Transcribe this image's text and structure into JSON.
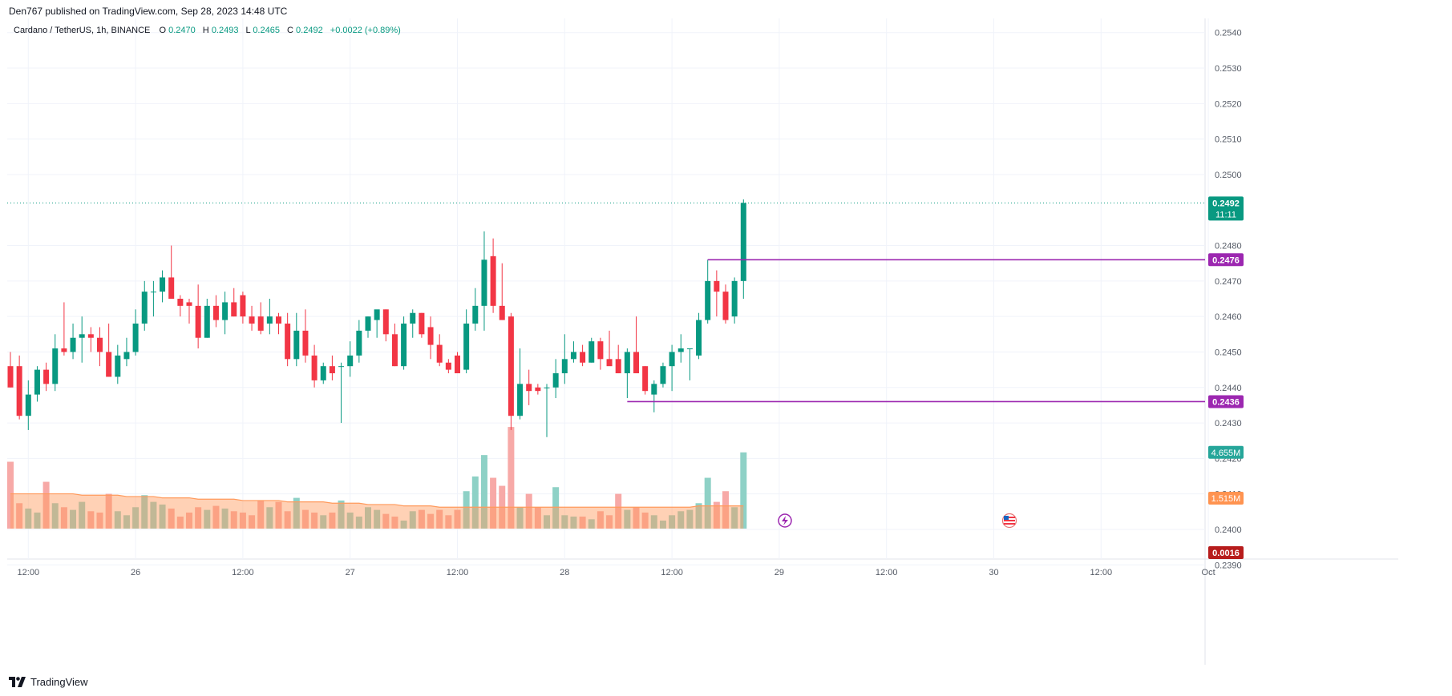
{
  "header": {
    "publisher": "Den767 published on TradingView.com, Sep 28, 2023 14:48 UTC",
    "symbol": "Cardano / TetherUS, 1h, BINANCE",
    "o_label": "O",
    "o_value": "0.2470",
    "h_label": "H",
    "h_value": "0.2493",
    "l_label": "L",
    "l_value": "0.2465",
    "c_label": "C",
    "c_value": "0.2492",
    "change": "+0.0022 (+0.89%)"
  },
  "colors": {
    "up": "#089981",
    "down": "#F23645",
    "up_volume": "#8ED1C6",
    "down_volume": "#F7A9A7",
    "ma_volume": "#FF9A5C",
    "level": "#9C27B0",
    "grid": "#F0F3FA",
    "text": "#131722",
    "axis_text": "#555B66"
  },
  "chart_data": {
    "type": "candlestick",
    "symbol": "Cardano / TetherUS",
    "interval": "1h",
    "exchange": "BINANCE",
    "y_axis": {
      "ylim": [
        0.2386,
        0.2544
      ],
      "ticks": [
        "0.2540",
        "0.2530",
        "0.2520",
        "0.2510",
        "0.2500",
        "0.2480",
        "0.2470",
        "0.2460",
        "0.2450",
        "0.2440",
        "0.2430",
        "0.2420",
        "0.2410",
        "0.2400",
        "0.2390"
      ]
    },
    "x_axis": {
      "tick_labels": [
        "12:00",
        "26",
        "12:00",
        "27",
        "12:00",
        "28",
        "12:00",
        "29",
        "12:00",
        "30",
        "12:00",
        "Oct"
      ],
      "tick_index": [
        2,
        14,
        26,
        38,
        50,
        62,
        74,
        86,
        98,
        110,
        122,
        134
      ]
    },
    "grid": true,
    "candles": [
      {
        "o": 0.2446,
        "h": 0.245,
        "l": 0.244,
        "c": 0.244
      },
      {
        "o": 0.2446,
        "h": 0.2449,
        "l": 0.2431,
        "c": 0.2432
      },
      {
        "o": 0.2432,
        "h": 0.2442,
        "l": 0.2428,
        "c": 0.2438
      },
      {
        "o": 0.2438,
        "h": 0.2446,
        "l": 0.2436,
        "c": 0.2445
      },
      {
        "o": 0.2445,
        "h": 0.2447,
        "l": 0.2439,
        "c": 0.2441
      },
      {
        "o": 0.2441,
        "h": 0.2455,
        "l": 0.2439,
        "c": 0.2451
      },
      {
        "o": 0.2451,
        "h": 0.2464,
        "l": 0.2449,
        "c": 0.245
      },
      {
        "o": 0.245,
        "h": 0.2458,
        "l": 0.2448,
        "c": 0.2454
      },
      {
        "o": 0.2454,
        "h": 0.246,
        "l": 0.2447,
        "c": 0.2455
      },
      {
        "o": 0.2455,
        "h": 0.2457,
        "l": 0.245,
        "c": 0.2454
      },
      {
        "o": 0.2454,
        "h": 0.2457,
        "l": 0.2446,
        "c": 0.245
      },
      {
        "o": 0.245,
        "h": 0.2458,
        "l": 0.2443,
        "c": 0.2443
      },
      {
        "o": 0.2443,
        "h": 0.2452,
        "l": 0.2441,
        "c": 0.2449
      },
      {
        "o": 0.2448,
        "h": 0.2454,
        "l": 0.2446,
        "c": 0.245
      },
      {
        "o": 0.245,
        "h": 0.2462,
        "l": 0.2449,
        "c": 0.2458
      },
      {
        "o": 0.2458,
        "h": 0.247,
        "l": 0.2456,
        "c": 0.2467
      },
      {
        "o": 0.2467,
        "h": 0.247,
        "l": 0.246,
        "c": 0.2467
      },
      {
        "o": 0.2467,
        "h": 0.2473,
        "l": 0.2464,
        "c": 0.2471
      },
      {
        "o": 0.2471,
        "h": 0.248,
        "l": 0.2465,
        "c": 0.2465
      },
      {
        "o": 0.2465,
        "h": 0.2466,
        "l": 0.246,
        "c": 0.2463
      },
      {
        "o": 0.2464,
        "h": 0.2465,
        "l": 0.2458,
        "c": 0.2463
      },
      {
        "o": 0.2463,
        "h": 0.2469,
        "l": 0.2451,
        "c": 0.2454
      },
      {
        "o": 0.2454,
        "h": 0.2465,
        "l": 0.2454,
        "c": 0.2463
      },
      {
        "o": 0.2463,
        "h": 0.2466,
        "l": 0.2457,
        "c": 0.2459
      },
      {
        "o": 0.2459,
        "h": 0.2467,
        "l": 0.2455,
        "c": 0.2464
      },
      {
        "o": 0.2464,
        "h": 0.2468,
        "l": 0.246,
        "c": 0.246
      },
      {
        "o": 0.2466,
        "h": 0.2467,
        "l": 0.2458,
        "c": 0.246
      },
      {
        "o": 0.246,
        "h": 0.2463,
        "l": 0.2456,
        "c": 0.2458
      },
      {
        "o": 0.246,
        "h": 0.2464,
        "l": 0.2455,
        "c": 0.2456
      },
      {
        "o": 0.2458,
        "h": 0.2465,
        "l": 0.2455,
        "c": 0.246
      },
      {
        "o": 0.246,
        "h": 0.2461,
        "l": 0.2455,
        "c": 0.2458
      },
      {
        "o": 0.2458,
        "h": 0.2461,
        "l": 0.2446,
        "c": 0.2448
      },
      {
        "o": 0.2448,
        "h": 0.2461,
        "l": 0.2446,
        "c": 0.2456
      },
      {
        "o": 0.2456,
        "h": 0.2462,
        "l": 0.2447,
        "c": 0.2449
      },
      {
        "o": 0.2449,
        "h": 0.2452,
        "l": 0.244,
        "c": 0.2442
      },
      {
        "o": 0.2442,
        "h": 0.2447,
        "l": 0.2441,
        "c": 0.2446
      },
      {
        "o": 0.2446,
        "h": 0.2449,
        "l": 0.2442,
        "c": 0.2444
      },
      {
        "o": 0.2446,
        "h": 0.2447,
        "l": 0.243,
        "c": 0.2446
      },
      {
        "o": 0.2446,
        "h": 0.2453,
        "l": 0.2443,
        "c": 0.2449
      },
      {
        "o": 0.2449,
        "h": 0.2459,
        "l": 0.2447,
        "c": 0.2456
      },
      {
        "o": 0.2456,
        "h": 0.246,
        "l": 0.2454,
        "c": 0.246
      },
      {
        "o": 0.2459,
        "h": 0.2461,
        "l": 0.2454,
        "c": 0.2462
      },
      {
        "o": 0.2462,
        "h": 0.2462,
        "l": 0.2453,
        "c": 0.2455
      },
      {
        "o": 0.2455,
        "h": 0.2458,
        "l": 0.2446,
        "c": 0.2446
      },
      {
        "o": 0.2446,
        "h": 0.246,
        "l": 0.2445,
        "c": 0.2458
      },
      {
        "o": 0.2458,
        "h": 0.2462,
        "l": 0.2454,
        "c": 0.2461
      },
      {
        "o": 0.2461,
        "h": 0.2461,
        "l": 0.2454,
        "c": 0.2455
      },
      {
        "o": 0.2457,
        "h": 0.246,
        "l": 0.2448,
        "c": 0.2452
      },
      {
        "o": 0.2452,
        "h": 0.2455,
        "l": 0.2446,
        "c": 0.2447
      },
      {
        "o": 0.2447,
        "h": 0.2448,
        "l": 0.2444,
        "c": 0.2445
      },
      {
        "o": 0.2449,
        "h": 0.245,
        "l": 0.2444,
        "c": 0.2444
      },
      {
        "o": 0.2445,
        "h": 0.2462,
        "l": 0.2444,
        "c": 0.2458
      },
      {
        "o": 0.2458,
        "h": 0.2468,
        "l": 0.2456,
        "c": 0.2463
      },
      {
        "o": 0.2463,
        "h": 0.2484,
        "l": 0.2456,
        "c": 0.2476
      },
      {
        "o": 0.2477,
        "h": 0.2482,
        "l": 0.2461,
        "c": 0.2463
      },
      {
        "o": 0.2463,
        "h": 0.2475,
        "l": 0.2459,
        "c": 0.2459
      },
      {
        "o": 0.246,
        "h": 0.2461,
        "l": 0.2428,
        "c": 0.2432
      },
      {
        "o": 0.2432,
        "h": 0.2451,
        "l": 0.2431,
        "c": 0.2441
      },
      {
        "o": 0.2441,
        "h": 0.2445,
        "l": 0.2435,
        "c": 0.2439
      },
      {
        "o": 0.244,
        "h": 0.2441,
        "l": 0.2438,
        "c": 0.2439
      },
      {
        "o": 0.244,
        "h": 0.2441,
        "l": 0.2426,
        "c": 0.244
      },
      {
        "o": 0.244,
        "h": 0.2448,
        "l": 0.2437,
        "c": 0.2444
      },
      {
        "o": 0.2444,
        "h": 0.2455,
        "l": 0.2441,
        "c": 0.2448
      },
      {
        "o": 0.2448,
        "h": 0.2453,
        "l": 0.2447,
        "c": 0.245
      },
      {
        "o": 0.245,
        "h": 0.2452,
        "l": 0.2446,
        "c": 0.2447
      },
      {
        "o": 0.2447,
        "h": 0.2454,
        "l": 0.2447,
        "c": 0.2453
      },
      {
        "o": 0.2453,
        "h": 0.2454,
        "l": 0.2445,
        "c": 0.2448
      },
      {
        "o": 0.2448,
        "h": 0.2456,
        "l": 0.2447,
        "c": 0.2446
      },
      {
        "o": 0.2448,
        "h": 0.2452,
        "l": 0.2444,
        "c": 0.2444
      },
      {
        "o": 0.2444,
        "h": 0.2451,
        "l": 0.2437,
        "c": 0.245
      },
      {
        "o": 0.245,
        "h": 0.246,
        "l": 0.2444,
        "c": 0.2444
      },
      {
        "o": 0.2446,
        "h": 0.2446,
        "l": 0.2438,
        "c": 0.2439
      },
      {
        "o": 0.2438,
        "h": 0.2442,
        "l": 0.2433,
        "c": 0.2441
      },
      {
        "o": 0.2441,
        "h": 0.2447,
        "l": 0.244,
        "c": 0.2446
      },
      {
        "o": 0.2446,
        "h": 0.2452,
        "l": 0.2439,
        "c": 0.245
      },
      {
        "o": 0.245,
        "h": 0.2455,
        "l": 0.2447,
        "c": 0.2451
      },
      {
        "o": 0.2451,
        "h": 0.2451,
        "l": 0.2442,
        "c": 0.2451
      },
      {
        "o": 0.2449,
        "h": 0.2461,
        "l": 0.2448,
        "c": 0.2459
      },
      {
        "o": 0.2459,
        "h": 0.2476,
        "l": 0.2458,
        "c": 0.247
      },
      {
        "o": 0.247,
        "h": 0.2473,
        "l": 0.246,
        "c": 0.2467
      },
      {
        "o": 0.2467,
        "h": 0.2469,
        "l": 0.2458,
        "c": 0.2459
      },
      {
        "o": 0.246,
        "h": 0.2471,
        "l": 0.2458,
        "c": 0.247
      },
      {
        "o": 0.247,
        "h": 0.2493,
        "l": 0.2465,
        "c": 0.2492
      }
    ],
    "volume_pane": {
      "ylim": [
        0,
        10
      ],
      "volumes": [
        5.0,
        1.9,
        1.5,
        1.2,
        3.5,
        1.9,
        1.6,
        1.4,
        2.0,
        1.3,
        1.2,
        2.6,
        1.3,
        1.0,
        1.6,
        2.5,
        2.0,
        1.8,
        1.5,
        0.9,
        1.2,
        1.6,
        1.4,
        1.7,
        1.5,
        1.3,
        1.2,
        1.0,
        2.1,
        1.6,
        2.0,
        1.3,
        2.3,
        1.4,
        1.2,
        1.0,
        1.2,
        2.1,
        1.2,
        0.9,
        1.6,
        1.4,
        1.1,
        0.9,
        0.6,
        1.3,
        1.4,
        1.1,
        1.4,
        1.0,
        1.4,
        2.8,
        3.9,
        5.5,
        3.8,
        3.2,
        7.6,
        1.6,
        2.6,
        1.6,
        1.0,
        3.1,
        1.0,
        0.9,
        0.9,
        0.7,
        1.3,
        1.0,
        2.6,
        1.4,
        1.6,
        1.2,
        1.0,
        0.6,
        1.0,
        1.3,
        1.4,
        1.9,
        3.8,
        2.0,
        2.8,
        1.6,
        5.7
      ],
      "ma": [
        2.6,
        2.6,
        2.6,
        2.6,
        2.6,
        2.6,
        2.6,
        2.6,
        2.5,
        2.5,
        2.5,
        2.5,
        2.5,
        2.4,
        2.4,
        2.4,
        2.4,
        2.3,
        2.3,
        2.3,
        2.3,
        2.2,
        2.2,
        2.2,
        2.2,
        2.2,
        2.1,
        2.1,
        2.1,
        2.1,
        2.1,
        2.0,
        2.0,
        2.0,
        2.0,
        2.0,
        1.9,
        1.9,
        1.9,
        1.9,
        1.8,
        1.8,
        1.8,
        1.8,
        1.7,
        1.7,
        1.7,
        1.7,
        1.6,
        1.6,
        1.6,
        1.6,
        1.6,
        1.6,
        1.6,
        1.6,
        1.6,
        1.6,
        1.6,
        1.6,
        1.6,
        1.6,
        1.6,
        1.6,
        1.6,
        1.6,
        1.6,
        1.6,
        1.6,
        1.6,
        1.6,
        1.6,
        1.6,
        1.6,
        1.6,
        1.6,
        1.6,
        1.7,
        1.7,
        1.7,
        1.7,
        1.7,
        1.7
      ]
    },
    "levels": [
      {
        "value": 0.2476,
        "label": "0.2476",
        "start_index": 78
      },
      {
        "value": 0.2436,
        "label": "0.2436",
        "start_index": 69
      }
    ],
    "last_price": {
      "value": 0.2492,
      "label": "0.2492",
      "countdown": "11:11"
    },
    "volume_badge": "4.655M",
    "volume_ma_badge": "1.515M",
    "bottom_badge": "0.0016"
  },
  "footer": {
    "brand": "TradingView"
  }
}
